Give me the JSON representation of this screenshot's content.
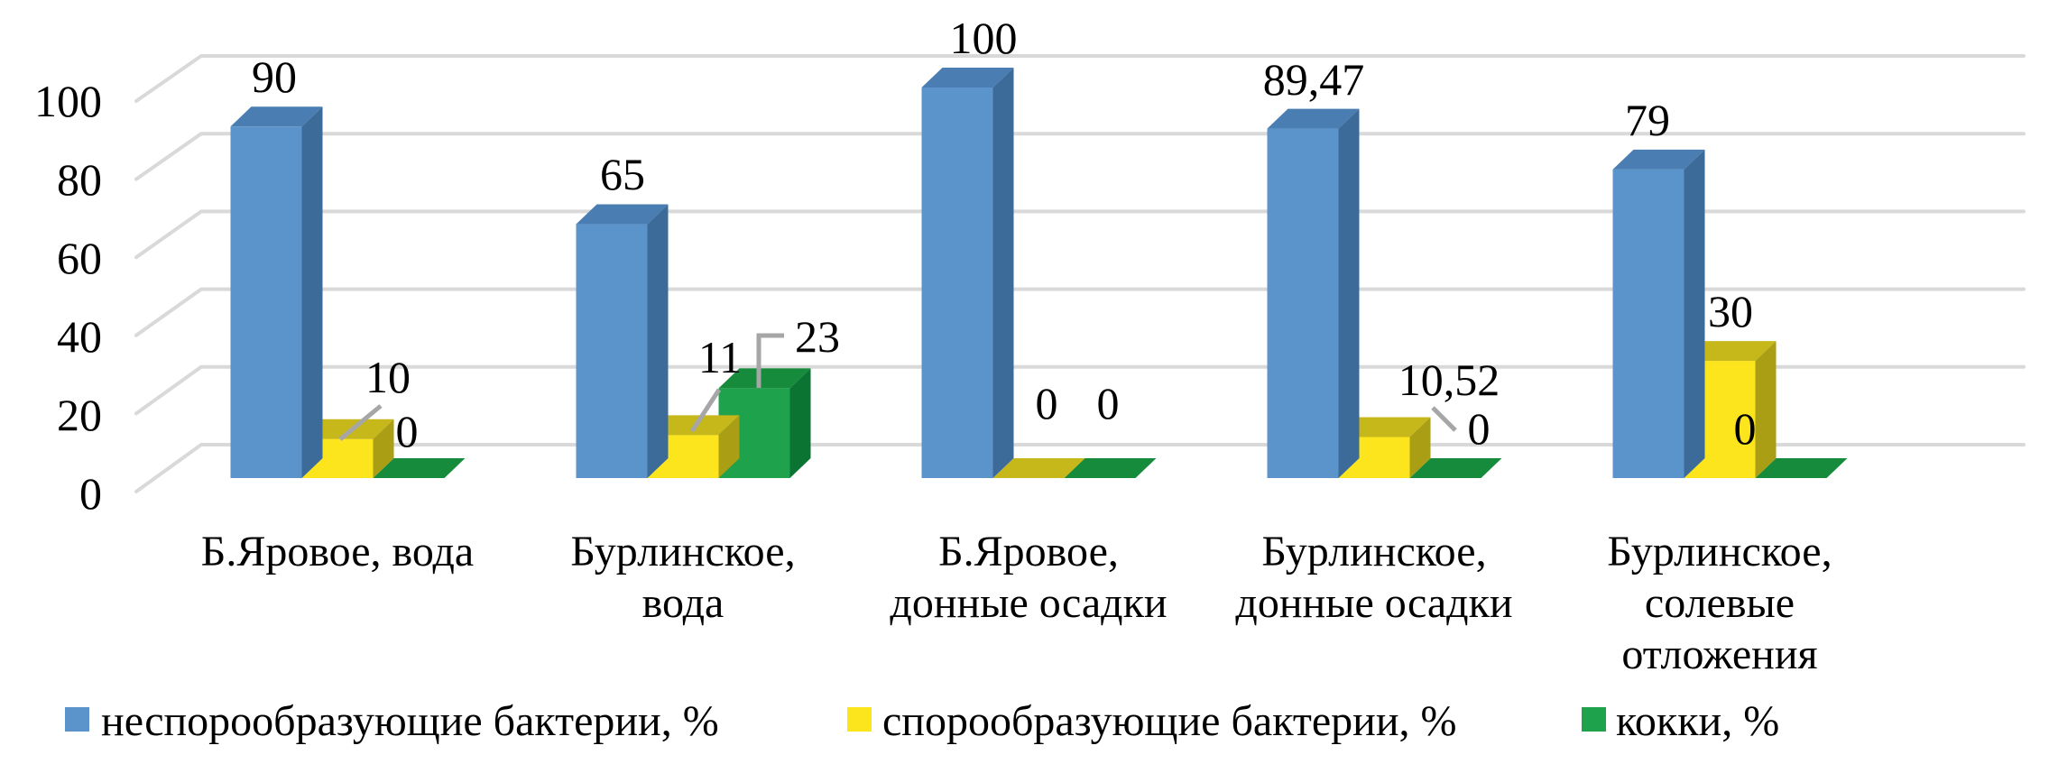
{
  "chart_data": {
    "type": "bar",
    "style": "3d-clustered-column",
    "title": "",
    "categories": [
      "Б.Яровое, вода",
      "Бурлинское, вода",
      "Б.Яровое, донные осадки",
      "Бурлинское, донные осадки",
      "Бурлинское, солевые отложения"
    ],
    "category_lines": [
      [
        "Б.Яровое, вода"
      ],
      [
        "Бурлинское,",
        "вода"
      ],
      [
        "Б.Яровое,",
        "донные осадки"
      ],
      [
        "Бурлинское,",
        "донные осадки"
      ],
      [
        "Бурлинское,",
        "солевые",
        "отложения"
      ]
    ],
    "series": [
      {
        "name": "неспорообразующие бактерии, %",
        "values": [
          90,
          65,
          100,
          89.47,
          79
        ],
        "data_labels": [
          "90",
          "65",
          "100",
          "89,47",
          "79"
        ],
        "faces": {
          "front": "#5B94CB",
          "top": "#4A7EB2",
          "side": "#3D6B99"
        }
      },
      {
        "name": "спорообразующие бактерии, %",
        "values": [
          10,
          11,
          0,
          10.52,
          30
        ],
        "data_labels": [
          "10",
          "11",
          "0",
          "10,52",
          "30"
        ],
        "faces": {
          "front": "#FCE51D",
          "top": "#C6B81A",
          "side": "#A99E14"
        }
      },
      {
        "name": "кокки, %",
        "values": [
          0,
          23,
          0,
          0,
          0
        ],
        "data_labels": [
          "0",
          "23",
          "0",
          "0",
          "0"
        ],
        "faces": {
          "front": "#1FA24C",
          "top": "#168B3C",
          "side": "#0C7433"
        }
      }
    ],
    "y_axis": {
      "min": 0,
      "max": 100,
      "ticks": [
        0,
        20,
        40,
        60,
        80,
        100
      ],
      "tick_labels": [
        "0",
        "20",
        "40",
        "60",
        "80",
        "100"
      ]
    },
    "grid": true,
    "legend_position": "bottom",
    "colors": {
      "gridline": "#D9D9D9",
      "leader_line": "#A6A6A6",
      "text": "#000000",
      "background": "#FFFFFF"
    }
  }
}
